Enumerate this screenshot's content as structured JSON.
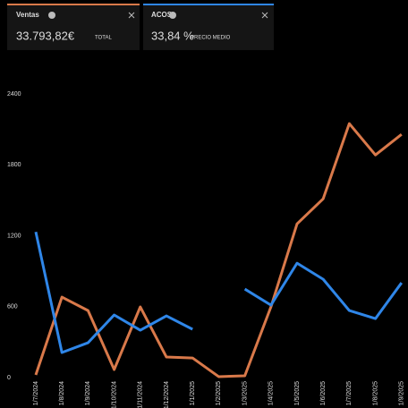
{
  "cards": [
    {
      "value": "33.793,82€",
      "caption": "TOTAL"
    },
    {
      "value": "33,84 %",
      "caption": "PRECIO MEDIO"
    }
  ],
  "chart_data": {
    "type": "line",
    "categories": [
      "1/7/2024",
      "1/8/2024",
      "1/9/2024",
      "1/10/2024",
      "1/11/2024",
      "1/12/2024",
      "1/1/2025",
      "1/2/2025",
      "1/3/2025",
      "1/4/2025",
      "1/5/2025",
      "1/6/2025",
      "1/7/2025",
      "1/8/2025",
      "1/9/2025"
    ],
    "series": [
      {
        "name": "Ventas",
        "color": "#d9794a",
        "values": [
          23,
          681,
          567,
          68,
          598,
          174,
          166,
          8,
          15,
          598,
          1301,
          1513,
          2149,
          1884,
          2058
        ]
      },
      {
        "name": "ACOS",
        "color": "#2f86e8",
        "values": [
          1233,
          212,
          295,
          530,
          401,
          522,
          409,
          null,
          749,
          613,
          968,
          832,
          567,
          499,
          802
        ]
      }
    ],
    "ylim": [
      0,
      2400
    ],
    "yticks": [
      0,
      600,
      1200,
      1800,
      2400
    ],
    "grid": false
  }
}
